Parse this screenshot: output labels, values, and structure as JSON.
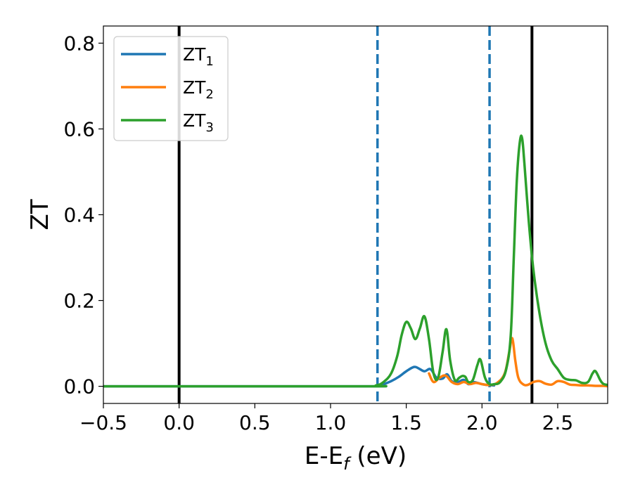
{
  "chart_data": {
    "type": "line",
    "xlabel": "E-E",
    "xlabel_sub": "f",
    "xlabel_unit": " (eV)",
    "ylabel": "ZT",
    "xlim": [
      -0.5,
      2.83
    ],
    "ylim": [
      -0.04,
      0.84
    ],
    "xticks": [
      -0.5,
      0.0,
      0.5,
      1.0,
      1.5,
      2.0,
      2.5
    ],
    "xtick_labels": [
      "−0.5",
      "0.0",
      "0.5",
      "1.0",
      "1.5",
      "2.0",
      "2.5"
    ],
    "yticks": [
      0.0,
      0.2,
      0.4,
      0.6,
      0.8
    ],
    "ytick_labels": [
      "0.0",
      "0.2",
      "0.4",
      "0.6",
      "0.8"
    ],
    "grid": false,
    "legend_position": "top-left",
    "vlines": [
      {
        "x": 0.0,
        "style": "solid",
        "color": "#000000"
      },
      {
        "x": 2.33,
        "style": "solid",
        "color": "#000000"
      },
      {
        "x": 1.31,
        "style": "dashed",
        "color": "#1f77b4"
      },
      {
        "x": 2.05,
        "style": "dashed",
        "color": "#1f77b4"
      }
    ],
    "series": [
      {
        "name": "ZT",
        "name_sub": "1",
        "color": "#1f77b4",
        "x": [
          -0.5,
          1.2,
          1.3,
          1.35,
          1.4,
          1.45,
          1.5,
          1.55,
          1.58,
          1.62,
          1.66,
          1.7,
          1.74,
          1.77,
          1.8,
          1.84,
          1.88,
          1.91,
          1.94,
          1.97,
          2.0,
          2.04,
          2.08
        ],
        "y": [
          0,
          0,
          0.001,
          0.005,
          0.012,
          0.022,
          0.035,
          0.045,
          0.042,
          0.035,
          0.04,
          0.02,
          0.018,
          0.028,
          0.012,
          0.01,
          0.015,
          0.005,
          0.01,
          0.008,
          0.005,
          0.003,
          0.002
        ]
      },
      {
        "name": "ZT",
        "name_sub": "2",
        "color": "#ff7f0e",
        "x": [
          1.65,
          1.68,
          1.72,
          1.76,
          1.8,
          1.84,
          1.88,
          1.92,
          1.96,
          2.0,
          2.05,
          2.1,
          2.15,
          2.18,
          2.2,
          2.22,
          2.24,
          2.27,
          2.3,
          2.34,
          2.38,
          2.42,
          2.46,
          2.5,
          2.54,
          2.58,
          2.62,
          2.66,
          2.7,
          2.75,
          2.8,
          2.83
        ],
        "y": [
          0.03,
          0.01,
          0.02,
          0.025,
          0.01,
          0.005,
          0.01,
          0.005,
          0.008,
          0.005,
          0.003,
          0.008,
          0.03,
          0.08,
          0.112,
          0.06,
          0.02,
          0.005,
          0.003,
          0.01,
          0.012,
          0.006,
          0.004,
          0.012,
          0.01,
          0.004,
          0.003,
          0.002,
          0.002,
          0.001,
          0.001,
          0.0
        ]
      },
      {
        "name": "ZT",
        "name_sub": "3",
        "color": "#2ca02c",
        "x": [
          -0.5,
          1.2,
          1.3,
          1.35,
          1.4,
          1.44,
          1.47,
          1.5,
          1.53,
          1.56,
          1.59,
          1.62,
          1.65,
          1.68,
          1.71,
          1.74,
          1.765,
          1.79,
          1.82,
          1.85,
          1.87,
          1.89,
          1.91,
          1.94,
          1.97,
          1.99,
          2.02,
          2.05,
          2.08,
          2.12,
          2.16,
          2.19,
          2.21,
          2.23,
          2.25,
          2.265,
          2.28,
          2.31,
          2.34,
          2.38,
          2.42,
          2.46,
          2.5,
          2.54,
          2.58,
          2.62,
          2.66,
          2.7,
          2.73,
          2.75,
          2.78,
          2.8,
          2.83
        ],
        "y": [
          0,
          0,
          0.002,
          0.01,
          0.03,
          0.07,
          0.12,
          0.15,
          0.135,
          0.11,
          0.135,
          0.163,
          0.11,
          0.03,
          0.02,
          0.08,
          0.133,
          0.06,
          0.015,
          0.02,
          0.024,
          0.022,
          0.01,
          0.015,
          0.05,
          0.062,
          0.02,
          0.005,
          0.005,
          0.01,
          0.04,
          0.12,
          0.3,
          0.48,
          0.57,
          0.578,
          0.52,
          0.38,
          0.27,
          0.17,
          0.1,
          0.06,
          0.04,
          0.02,
          0.015,
          0.014,
          0.008,
          0.01,
          0.03,
          0.035,
          0.015,
          0.006,
          0.003
        ]
      }
    ]
  }
}
